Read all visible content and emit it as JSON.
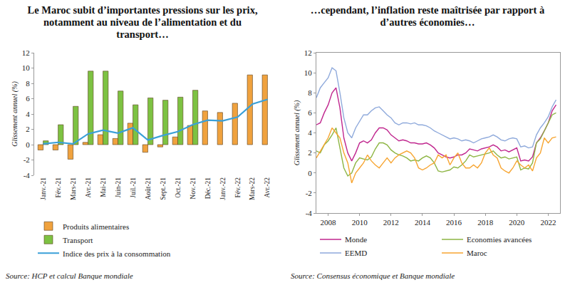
{
  "chart_data": [
    {
      "type": "bar",
      "title": "Le Maroc subit d’importantes pressions sur les prix, notamment au niveau de l’alimentation et du transport…",
      "source": "Source: HCP et calcul Banque mondiale",
      "y_label": "Glissement annuel (%)",
      "categories": [
        "Janv.-21",
        "Fév.-21",
        "Mars-21",
        "Avr.-21",
        "Mai-21",
        "Juin-21",
        "Juil.-21",
        "Août-21",
        "Sept.-21",
        "Oct.-21",
        "Nov.-21",
        "Déc.-21",
        "Janv.-22",
        "Fév.-22",
        "Mars-22",
        "Avr.-22"
      ],
      "series": [
        {
          "name": "Produits alimentaires",
          "type": "bar",
          "color": "#f0a23e",
          "values": [
            -0.7,
            -0.7,
            -1.9,
            0.3,
            1.3,
            0.8,
            2.8,
            -1.0,
            -0.3,
            1.0,
            2.5,
            4.4,
            4.2,
            5.4,
            9.1,
            9.1
          ]
        },
        {
          "name": "Transport",
          "type": "bar",
          "color": "#7dc242",
          "values": [
            0.5,
            2.6,
            5.0,
            9.6,
            9.6,
            7.0,
            5.2,
            6.1,
            5.8,
            6.2,
            7.1,
            null,
            null,
            null,
            null,
            null
          ]
        },
        {
          "name": "Indice des prix à la consommation",
          "type": "line",
          "color": "#3aa0d8",
          "values": [
            0.1,
            0.3,
            0.1,
            1.4,
            1.9,
            1.5,
            2.2,
            0.6,
            1.2,
            1.7,
            2.6,
            3.2,
            3.1,
            3.6,
            5.3,
            5.9
          ]
        }
      ],
      "ylim": [
        -4,
        12
      ],
      "yticks": [
        -4,
        -2,
        0,
        2,
        4,
        6,
        8,
        10,
        12
      ],
      "grid": false,
      "legend": "bottom"
    },
    {
      "type": "line",
      "title": "…cependant, l’inflation reste maîtrisée par rapport à d’autres économies…",
      "source": "Source: Consensus économique et Banque mondiale",
      "y_label": "Glissement annuel (%)",
      "x": [
        2007.25,
        2007.5,
        2007.75,
        2008,
        2008.25,
        2008.5,
        2008.75,
        2009,
        2009.25,
        2009.5,
        2009.75,
        2010,
        2010.25,
        2010.5,
        2010.75,
        2011,
        2011.25,
        2011.5,
        2011.75,
        2012,
        2012.25,
        2012.5,
        2012.75,
        2013,
        2013.25,
        2013.5,
        2013.75,
        2014,
        2014.25,
        2014.5,
        2014.75,
        2015,
        2015.25,
        2015.5,
        2015.75,
        2016,
        2016.25,
        2016.5,
        2016.75,
        2017,
        2017.25,
        2017.5,
        2017.75,
        2018,
        2018.25,
        2018.5,
        2018.75,
        2019,
        2019.25,
        2019.5,
        2019.75,
        2020,
        2020.25,
        2020.5,
        2020.75,
        2021,
        2021.25,
        2021.5,
        2021.75,
        2022,
        2022.25,
        2022.5
      ],
      "series": [
        {
          "name": "Monde",
          "color": "#c0268e",
          "values": [
            4.8,
            5.0,
            6.0,
            6.8,
            8.0,
            8.5,
            6.5,
            3.5,
            2.0,
            1.2,
            2.0,
            3.0,
            3.2,
            3.0,
            3.3,
            4.0,
            4.5,
            4.5,
            4.3,
            3.8,
            3.5,
            3.2,
            3.3,
            3.2,
            3.0,
            3.0,
            2.9,
            2.9,
            3.0,
            2.8,
            2.5,
            2.0,
            1.8,
            1.6,
            1.5,
            1.6,
            1.8,
            1.8,
            2.0,
            2.4,
            2.3,
            2.2,
            2.4,
            2.5,
            2.6,
            2.8,
            2.6,
            2.2,
            2.3,
            2.1,
            2.3,
            2.5,
            1.2,
            1.3,
            1.2,
            1.6,
            3.0,
            3.5,
            4.2,
            5.0,
            6.2,
            6.8
          ]
        },
        {
          "name": "Economies avancées",
          "color": "#8db543",
          "values": [
            2.2,
            2.0,
            2.8,
            3.2,
            3.8,
            4.5,
            2.5,
            0.5,
            -0.3,
            0.0,
            1.0,
            1.5,
            1.4,
            1.3,
            1.6,
            2.4,
            3.0,
            3.0,
            2.8,
            2.3,
            2.0,
            1.8,
            1.7,
            1.5,
            1.2,
            1.3,
            1.2,
            1.5,
            1.7,
            1.5,
            1.0,
            0.2,
            0.1,
            0.2,
            0.3,
            0.6,
            0.5,
            0.8,
            1.2,
            1.8,
            1.6,
            1.7,
            1.8,
            1.9,
            2.0,
            2.2,
            1.8,
            1.5,
            1.6,
            1.4,
            1.5,
            1.6,
            0.3,
            0.5,
            0.4,
            1.0,
            3.0,
            3.4,
            4.2,
            5.0,
            5.8,
            6.0
          ]
        },
        {
          "name": "EEMD",
          "color": "#8ea9db",
          "values": [
            7.5,
            8.5,
            9.0,
            9.5,
            10.5,
            10.2,
            8.0,
            5.5,
            4.0,
            3.5,
            4.5,
            5.2,
            5.8,
            5.8,
            6.2,
            6.5,
            6.6,
            6.2,
            5.8,
            5.5,
            5.0,
            4.8,
            5.0,
            5.0,
            4.9,
            5.0,
            4.8,
            4.8,
            4.7,
            4.5,
            4.2,
            4.0,
            3.8,
            3.6,
            3.4,
            3.5,
            3.4,
            3.2,
            3.3,
            3.2,
            3.0,
            3.2,
            3.4,
            3.5,
            3.6,
            3.8,
            3.6,
            3.3,
            3.2,
            3.4,
            3.5,
            3.4,
            2.6,
            2.7,
            2.5,
            2.6,
            3.8,
            4.5,
            5.0,
            5.6,
            6.6,
            7.3
          ]
        },
        {
          "name": "Maroc",
          "color": "#f7a531",
          "values": [
            1.5,
            2.2,
            2.8,
            3.5,
            4.5,
            4.0,
            3.5,
            2.0,
            1.0,
            -1.0,
            0.0,
            0.5,
            1.0,
            1.8,
            1.2,
            0.8,
            0.5,
            1.0,
            1.5,
            1.0,
            1.5,
            1.8,
            2.0,
            2.2,
            2.0,
            1.5,
            0.5,
            0.3,
            0.5,
            0.8,
            1.0,
            1.8,
            1.5,
            1.8,
            0.8,
            1.5,
            2.0,
            1.0,
            0.5,
            0.5,
            0.8,
            0.5,
            1.0,
            2.0,
            2.5,
            1.8,
            1.5,
            0.5,
            0.2,
            0.0,
            0.5,
            1.2,
            0.8,
            0.5,
            0.8,
            0.2,
            1.5,
            2.0,
            3.5,
            3.0,
            3.5,
            3.6
          ]
        }
      ],
      "xlim": [
        2007.25,
        2022.75
      ],
      "xticks": [
        2008,
        2010,
        2012,
        2014,
        2016,
        2018,
        2020,
        2022
      ],
      "ylim": [
        -4,
        12
      ],
      "yticks": [
        -4,
        -2,
        0,
        2,
        4,
        6,
        8,
        10,
        12
      ],
      "grid": false,
      "legend": "bottom"
    }
  ]
}
